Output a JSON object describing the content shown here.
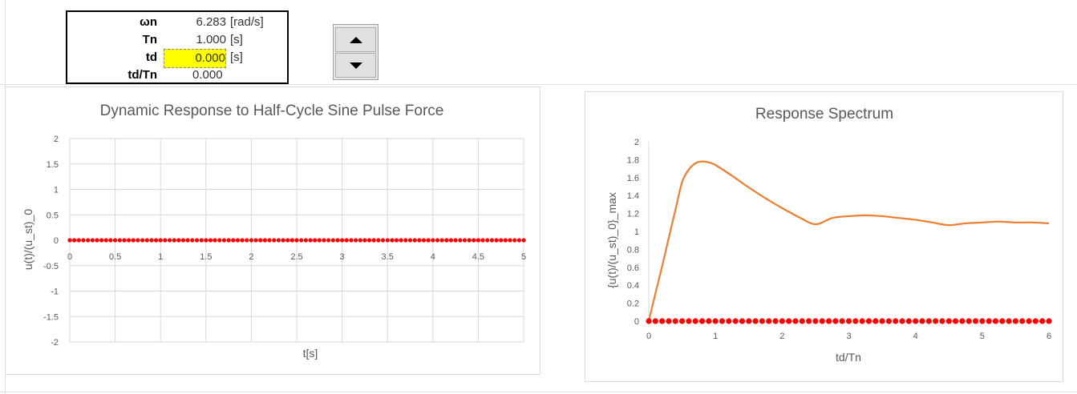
{
  "parameters": [
    {
      "label": "ωn",
      "value": "6.283",
      "unit": "[rad/s]"
    },
    {
      "label": "Tn",
      "value": "1.000",
      "unit": "[s]"
    },
    {
      "label": "td",
      "value": "0.000",
      "unit": "[s]"
    },
    {
      "label": "td/Tn",
      "value": "0.000",
      "unit": ""
    }
  ],
  "highlight_color": "#ffff00",
  "spin_button": {
    "up_icon": "triangle-up-icon",
    "down_icon": "triangle-down-icon"
  },
  "chart_data": [
    {
      "type": "scatter",
      "title": "Dynamic Response to Half-Cycle Sine Pulse Force",
      "xlabel": "t[s]",
      "ylabel": "u(t)/(u_st)_0",
      "xlim": [
        0,
        5
      ],
      "ylim": [
        -2,
        2
      ],
      "x_ticks": [
        "0",
        "0.5",
        "1",
        "1.5",
        "2",
        "2.5",
        "3",
        "3.5",
        "4",
        "4.5",
        "5"
      ],
      "y_ticks": [
        "2",
        "1.5",
        "1",
        "0.5",
        "0",
        "-0.5",
        "-1",
        "-1.5",
        "-2"
      ],
      "grid": true,
      "series": [
        {
          "color": "#ff0000",
          "marker": "dot",
          "x_start": 0,
          "x_end": 5,
          "x_step": 0.05,
          "y_constant": 0
        }
      ]
    },
    {
      "type": "line",
      "title": "Response Spectrum",
      "xlabel": "td/Tn",
      "ylabel": "{u(t)/(u_st)_0}_max",
      "xlim": [
        0,
        6
      ],
      "ylim": [
        0,
        2
      ],
      "x_ticks": [
        "0",
        "1",
        "2",
        "3",
        "4",
        "5",
        "6"
      ],
      "y_ticks": [
        "2",
        "1.8",
        "1.6",
        "1.4",
        "1.2",
        "1",
        "0.8",
        "0.6",
        "0.4",
        "0.2",
        "0"
      ],
      "grid": false,
      "series": [
        {
          "color": "#ed7d31",
          "x": [
            0,
            0.1,
            0.2,
            0.3,
            0.4,
            0.5,
            0.6,
            0.7,
            0.8,
            0.9,
            1.0,
            1.25,
            1.5,
            1.75,
            2.0,
            2.25,
            2.5,
            2.75,
            3.0,
            3.25,
            3.5,
            3.75,
            4.0,
            4.25,
            4.5,
            4.75,
            5.0,
            5.25,
            5.5,
            5.75,
            6.0
          ],
          "y": [
            0,
            0.31,
            0.61,
            0.93,
            1.24,
            1.55,
            1.69,
            1.76,
            1.78,
            1.77,
            1.74,
            1.62,
            1.49,
            1.37,
            1.26,
            1.16,
            1.08,
            1.15,
            1.17,
            1.18,
            1.17,
            1.15,
            1.13,
            1.1,
            1.07,
            1.09,
            1.1,
            1.11,
            1.1,
            1.1,
            1.09
          ]
        },
        {
          "color": "#ff0000",
          "marker": "dot",
          "x_start": 0,
          "x_end": 6,
          "x_step": 0.1,
          "y_constant": 0
        }
      ]
    }
  ]
}
